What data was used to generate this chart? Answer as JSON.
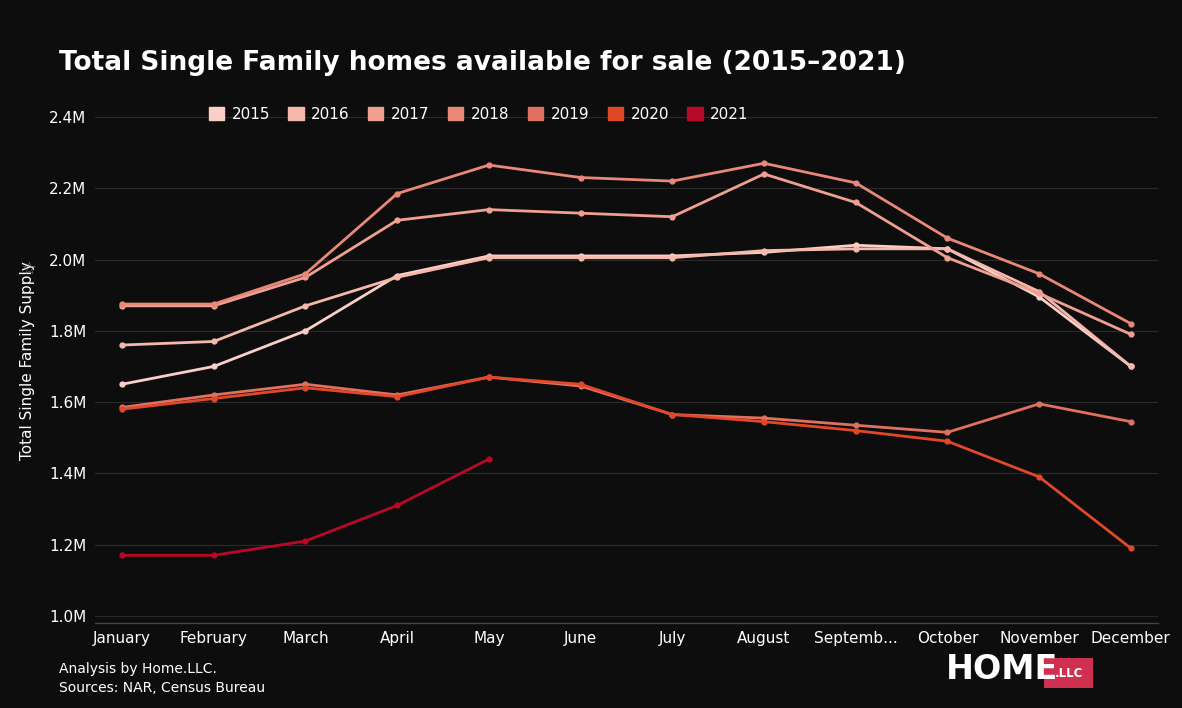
{
  "title": "Total Single Family homes available for sale (2015–2021)",
  "ylabel": "Total Single Family Supply",
  "background_color": "#0d0d0d",
  "text_color": "#ffffff",
  "grid_color": "#2a2a2a",
  "footnote1": "Analysis by Home.LLC.",
  "footnote2": "Sources: NAR, Census Bureau",
  "months": [
    "January",
    "February",
    "March",
    "April",
    "May",
    "June",
    "July",
    "August",
    "Septemb...",
    "October",
    "November",
    "December"
  ],
  "ylim": [
    980000,
    2450000
  ],
  "yticks": [
    1000000,
    1200000,
    1400000,
    1600000,
    1800000,
    2000000,
    2200000,
    2400000
  ],
  "series": [
    {
      "year": "2015",
      "color": "#f9cfc8",
      "values": [
        1650000,
        1700000,
        1800000,
        1955000,
        2010000,
        2010000,
        2010000,
        2020000,
        2040000,
        2030000,
        1895000,
        1700000
      ]
    },
    {
      "year": "2016",
      "color": "#f5b8aa",
      "values": [
        1760000,
        1770000,
        1870000,
        1950000,
        2005000,
        2005000,
        2005000,
        2025000,
        2030000,
        2030000,
        1910000,
        1700000
      ]
    },
    {
      "year": "2017",
      "color": "#f0a090",
      "values": [
        1870000,
        1870000,
        1950000,
        2110000,
        2140000,
        2130000,
        2120000,
        2240000,
        2160000,
        2005000,
        1905000,
        1790000
      ]
    },
    {
      "year": "2018",
      "color": "#e88878",
      "values": [
        1875000,
        1875000,
        1960000,
        2185000,
        2265000,
        2230000,
        2220000,
        2270000,
        2215000,
        2060000,
        1960000,
        1820000
      ]
    },
    {
      "year": "2019",
      "color": "#e07060",
      "values": [
        1585000,
        1620000,
        1650000,
        1620000,
        1670000,
        1645000,
        1565000,
        1555000,
        1535000,
        1515000,
        1595000,
        1545000
      ]
    },
    {
      "year": "2020",
      "color": "#e04828",
      "values": [
        1580000,
        1610000,
        1640000,
        1615000,
        1670000,
        1650000,
        1565000,
        1545000,
        1520000,
        1490000,
        1390000,
        1190000
      ]
    },
    {
      "year": "2021",
      "color": "#b80828",
      "values": [
        1170000,
        1170000,
        1210000,
        1310000,
        1440000,
        null,
        null,
        null,
        null,
        null,
        null,
        null
      ]
    }
  ]
}
